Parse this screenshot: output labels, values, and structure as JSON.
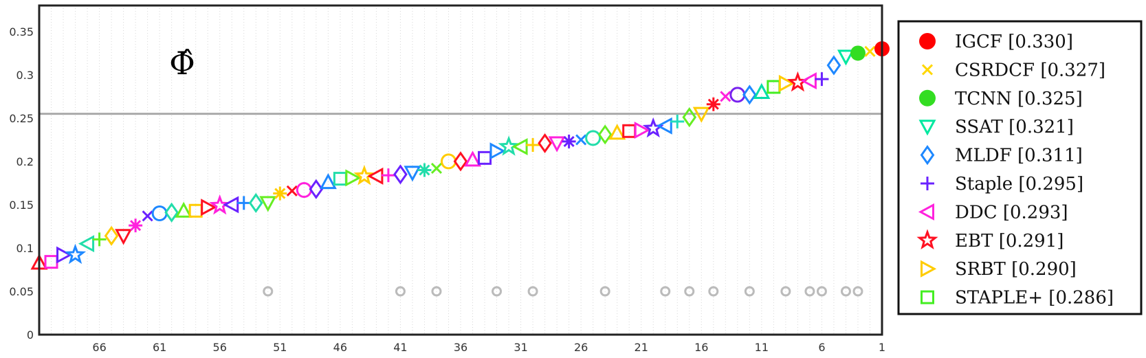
{
  "chart_data": {
    "type": "scatter",
    "title": "",
    "xlabel": "",
    "ylabel": "",
    "annotation": "Φ̂",
    "x_axis": {
      "direction": "reversed",
      "range": [
        1,
        70
      ],
      "tick_values": [
        66,
        61,
        56,
        51,
        46,
        41,
        36,
        31,
        26,
        21,
        16,
        11,
        6,
        1
      ],
      "tick_labels": [
        "66",
        "61",
        "56",
        "51",
        "46",
        "41",
        "36",
        "31",
        "26",
        "21",
        "16",
        "11",
        "6",
        "1"
      ]
    },
    "y_axis": {
      "range": [
        0,
        0.38
      ],
      "tick_values": [
        0,
        0.05,
        0.1,
        0.15,
        0.2,
        0.25,
        0.3,
        0.35
      ],
      "tick_labels": [
        "0",
        "0.05",
        "0.1",
        "0.15",
        "0.2",
        "0.25",
        "0.3",
        "0.35"
      ]
    },
    "grid": "dotted vertical lines at each rank",
    "reference_line": 0.255,
    "legend_position": "outside-right",
    "legend": [
      {
        "label": "IGCF [0.330]",
        "marker": "filled-circle",
        "color": "#ff0000"
      },
      {
        "label": "CSRDCF [0.327]",
        "marker": "x",
        "color": "#ffd700"
      },
      {
        "label": "TCNN [0.325]",
        "marker": "filled-circle",
        "color": "#33dd22"
      },
      {
        "label": "SSAT [0.321]",
        "marker": "triangle-down",
        "color": "#00e8a0"
      },
      {
        "label": "MLDF [0.311]",
        "marker": "diamond",
        "color": "#1e88ff"
      },
      {
        "label": "Staple [0.295]",
        "marker": "plus",
        "color": "#6a22ff"
      },
      {
        "label": "DDC [0.293]",
        "marker": "triangle-left",
        "color": "#ff22dd"
      },
      {
        "label": "EBT [0.291]",
        "marker": "star",
        "color": "#ff1122"
      },
      {
        "label": "SRBT [0.290]",
        "marker": "triangle-right",
        "color": "#ffcc00"
      },
      {
        "label": "STAPLE+ [0.286]",
        "marker": "square",
        "color": "#44ee22"
      }
    ],
    "points": [
      {
        "rank": 1,
        "value": 0.33,
        "marker": "filled-circle",
        "color": "#ff0000"
      },
      {
        "rank": 2,
        "value": 0.327,
        "marker": "x",
        "color": "#ffd700"
      },
      {
        "rank": 3,
        "value": 0.325,
        "marker": "filled-circle",
        "color": "#33dd22"
      },
      {
        "rank": 4,
        "value": 0.321,
        "marker": "triangle-down",
        "color": "#00e8a0"
      },
      {
        "rank": 5,
        "value": 0.311,
        "marker": "diamond",
        "color": "#1e88ff"
      },
      {
        "rank": 6,
        "value": 0.295,
        "marker": "plus",
        "color": "#6a22ff"
      },
      {
        "rank": 7,
        "value": 0.293,
        "marker": "triangle-left",
        "color": "#ff22dd"
      },
      {
        "rank": 8,
        "value": 0.291,
        "marker": "star",
        "color": "#ff1122"
      },
      {
        "rank": 9,
        "value": 0.29,
        "marker": "triangle-right",
        "color": "#ffcc00"
      },
      {
        "rank": 10,
        "value": 0.286,
        "marker": "square",
        "color": "#44ee22"
      },
      {
        "rank": 11,
        "value": 0.28,
        "marker": "triangle-up",
        "color": "#00ddaa"
      },
      {
        "rank": 12,
        "value": 0.277,
        "marker": "diamond",
        "color": "#1e88ff"
      },
      {
        "rank": 13,
        "value": 0.277,
        "marker": "circle",
        "color": "#7722ee"
      },
      {
        "rank": 14,
        "value": 0.275,
        "marker": "x",
        "color": "#ff22dd"
      },
      {
        "rank": 15,
        "value": 0.266,
        "marker": "asterisk",
        "color": "#ff1122"
      },
      {
        "rank": 16,
        "value": 0.255,
        "marker": "triangle-down",
        "color": "#ffcc00"
      },
      {
        "rank": 17,
        "value": 0.251,
        "marker": "diamond",
        "color": "#66ee22"
      },
      {
        "rank": 18,
        "value": 0.246,
        "marker": "plus",
        "color": "#22ddbb"
      },
      {
        "rank": 19,
        "value": 0.241,
        "marker": "triangle-left",
        "color": "#1e88ff"
      },
      {
        "rank": 20,
        "value": 0.238,
        "marker": "star",
        "color": "#6a22ff"
      },
      {
        "rank": 21,
        "value": 0.236,
        "marker": "triangle-right",
        "color": "#ff22dd"
      },
      {
        "rank": 22,
        "value": 0.235,
        "marker": "square",
        "color": "#ff1122"
      },
      {
        "rank": 23,
        "value": 0.233,
        "marker": "triangle-up",
        "color": "#ffcc00"
      },
      {
        "rank": 24,
        "value": 0.231,
        "marker": "diamond",
        "color": "#66ee22"
      },
      {
        "rank": 25,
        "value": 0.227,
        "marker": "circle",
        "color": "#22ddaa"
      },
      {
        "rank": 26,
        "value": 0.225,
        "marker": "x",
        "color": "#1e88ff"
      },
      {
        "rank": 27,
        "value": 0.223,
        "marker": "asterisk",
        "color": "#6a22ff"
      },
      {
        "rank": 28,
        "value": 0.221,
        "marker": "triangle-down",
        "color": "#ff22dd"
      },
      {
        "rank": 29,
        "value": 0.221,
        "marker": "diamond",
        "color": "#ff1122"
      },
      {
        "rank": 30,
        "value": 0.219,
        "marker": "plus",
        "color": "#ffcc00"
      },
      {
        "rank": 31,
        "value": 0.217,
        "marker": "triangle-left",
        "color": "#66ee22"
      },
      {
        "rank": 32,
        "value": 0.217,
        "marker": "star",
        "color": "#22ddaa"
      },
      {
        "rank": 33,
        "value": 0.212,
        "marker": "triangle-right",
        "color": "#1e88ff"
      },
      {
        "rank": 34,
        "value": 0.204,
        "marker": "square",
        "color": "#6a22ff"
      },
      {
        "rank": 35,
        "value": 0.202,
        "marker": "triangle-up",
        "color": "#ff22dd"
      },
      {
        "rank": 36,
        "value": 0.2,
        "marker": "diamond",
        "color": "#ff1122"
      },
      {
        "rank": 37,
        "value": 0.2,
        "marker": "circle",
        "color": "#ffcc00"
      },
      {
        "rank": 38,
        "value": 0.192,
        "marker": "x",
        "color": "#66ee22"
      },
      {
        "rank": 39,
        "value": 0.19,
        "marker": "asterisk",
        "color": "#22ddaa"
      },
      {
        "rank": 40,
        "value": 0.187,
        "marker": "triangle-down",
        "color": "#1e88ff"
      },
      {
        "rank": 41,
        "value": 0.185,
        "marker": "diamond",
        "color": "#6a22ff"
      },
      {
        "rank": 42,
        "value": 0.184,
        "marker": "plus",
        "color": "#ff22dd"
      },
      {
        "rank": 43,
        "value": 0.183,
        "marker": "triangle-left",
        "color": "#ff1122"
      },
      {
        "rank": 44,
        "value": 0.183,
        "marker": "star",
        "color": "#ffcc00"
      },
      {
        "rank": 45,
        "value": 0.181,
        "marker": "triangle-right",
        "color": "#66ee22"
      },
      {
        "rank": 46,
        "value": 0.18,
        "marker": "square",
        "color": "#22ddaa"
      },
      {
        "rank": 47,
        "value": 0.176,
        "marker": "triangle-up",
        "color": "#1e88ff"
      },
      {
        "rank": 48,
        "value": 0.168,
        "marker": "diamond",
        "color": "#6a22ff"
      },
      {
        "rank": 49,
        "value": 0.167,
        "marker": "circle",
        "color": "#ff22dd"
      },
      {
        "rank": 50,
        "value": 0.166,
        "marker": "x",
        "color": "#ff1122"
      },
      {
        "rank": 51,
        "value": 0.163,
        "marker": "asterisk",
        "color": "#ffcc00"
      },
      {
        "rank": 52,
        "value": 0.152,
        "marker": "triangle-down",
        "color": "#66ee22"
      },
      {
        "rank": 53,
        "value": 0.152,
        "marker": "diamond",
        "color": "#22ddaa"
      },
      {
        "rank": 54,
        "value": 0.152,
        "marker": "plus",
        "color": "#1e88ff"
      },
      {
        "rank": 55,
        "value": 0.15,
        "marker": "triangle-left",
        "color": "#6a22ff"
      },
      {
        "rank": 56,
        "value": 0.149,
        "marker": "star",
        "color": "#ff22dd"
      },
      {
        "rank": 57,
        "value": 0.147,
        "marker": "triangle-right",
        "color": "#ff1122"
      },
      {
        "rank": 58,
        "value": 0.143,
        "marker": "square",
        "color": "#ffcc00"
      },
      {
        "rank": 59,
        "value": 0.143,
        "marker": "triangle-up",
        "color": "#66ee22"
      },
      {
        "rank": 60,
        "value": 0.141,
        "marker": "diamond",
        "color": "#22ddaa"
      },
      {
        "rank": 61,
        "value": 0.14,
        "marker": "circle",
        "color": "#1e88ff"
      },
      {
        "rank": 62,
        "value": 0.137,
        "marker": "x",
        "color": "#6a22ff"
      },
      {
        "rank": 63,
        "value": 0.126,
        "marker": "asterisk",
        "color": "#ff22dd"
      },
      {
        "rank": 64,
        "value": 0.114,
        "marker": "triangle-down",
        "color": "#ff1122"
      },
      {
        "rank": 65,
        "value": 0.114,
        "marker": "diamond",
        "color": "#ffcc00"
      },
      {
        "rank": 66,
        "value": 0.11,
        "marker": "plus",
        "color": "#66ee22"
      },
      {
        "rank": 67,
        "value": 0.105,
        "marker": "triangle-left",
        "color": "#22ddaa"
      },
      {
        "rank": 68,
        "value": 0.092,
        "marker": "star",
        "color": "#1e88ff"
      },
      {
        "rank": 69,
        "value": 0.092,
        "marker": "triangle-right",
        "color": "#6a22ff"
      },
      {
        "rank": 70,
        "value": 0.084,
        "marker": "square",
        "color": "#ff22dd"
      },
      {
        "rank": 71,
        "value": 0.083,
        "marker": "triangle-up",
        "color": "#ff1122"
      }
    ],
    "grey_markers": {
      "value": 0.05,
      "marker": "small-ring",
      "color": "#bbbbbb",
      "ranks": [
        3,
        4,
        6,
        7,
        9,
        12,
        15,
        17,
        19,
        24,
        30,
        33,
        38,
        41,
        52
      ]
    }
  }
}
